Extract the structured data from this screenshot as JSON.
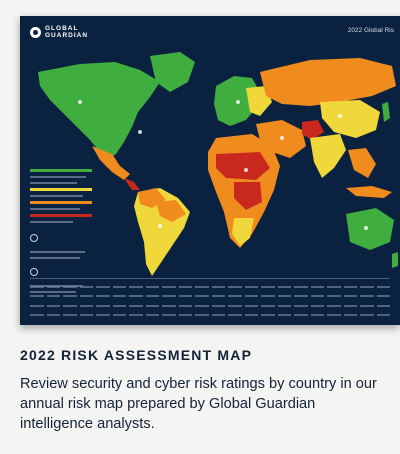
{
  "poster": {
    "brand": "GLOBAL GUARDIAN",
    "title": "2022 Global Ris"
  },
  "caption": {
    "heading": "2022 RISK ASSESSMENT MAP",
    "description": "Review security and cyber risk ratings by country in our annual risk map prepared by Global Guardian intelligence analysts."
  },
  "colors": {
    "ocean": "#0b2140",
    "low_risk": "#3fae3f",
    "moderate_risk": "#f0d83a",
    "high_risk": "#f08c1e",
    "extreme_risk": "#c8281e"
  }
}
